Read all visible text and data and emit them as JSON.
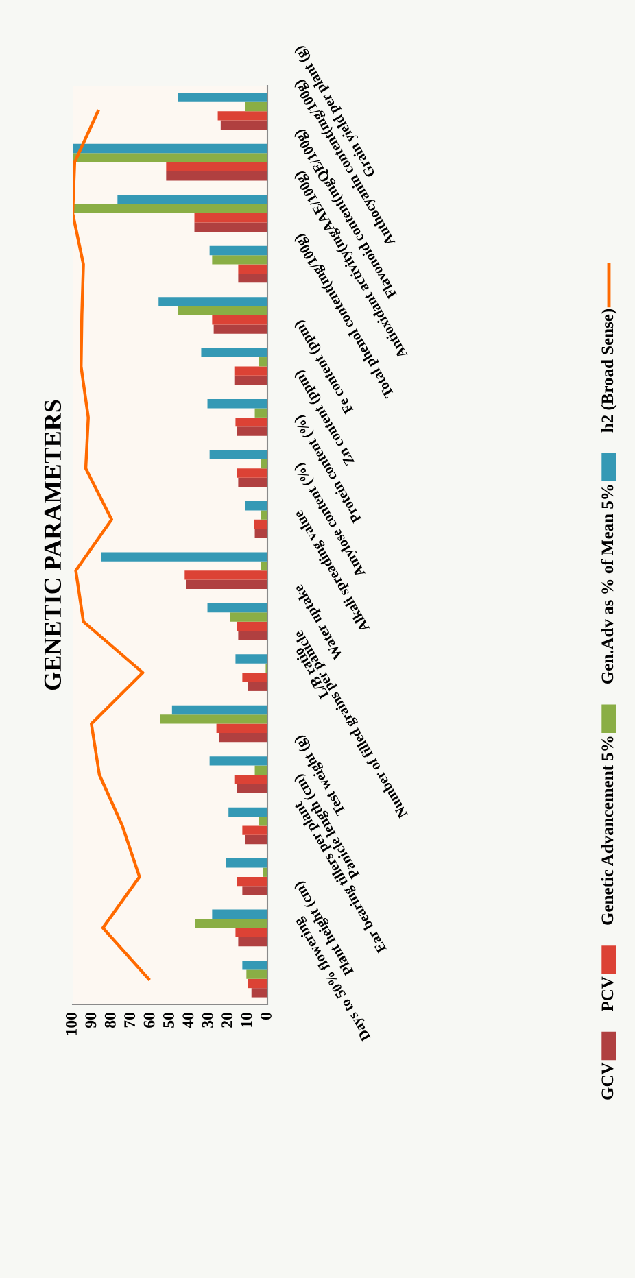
{
  "chart_data": {
    "type": "bar",
    "orientation": "horizontal",
    "title": "GENETIC PARAMETERS",
    "categories": [
      "Grain yield per plant (g)",
      "Anthocyanin content(mg/100g)",
      "Flavonoid content(mgQE/100g)",
      "Antioxidant activity(mgAAE/100g)",
      "Total phenol content(mg/100g)",
      "Fe content (ppm)",
      "Zn content (ppm)",
      "Protein content (%)",
      "Amylose content (%)",
      "Alkali spreading value",
      "Water uptake",
      "L/B ratio",
      "Number of filled grains per panicle",
      "Test weight (g)",
      "Panicle length (cm)",
      "Ear bearing tillers per plant",
      "Plant height (cm)",
      "Days to 50% flowering"
    ],
    "series": [
      {
        "name": "GCV",
        "color": "#b04040",
        "values": [
          24,
          52,
          37.5,
          15,
          27.6,
          17,
          15.6,
          15,
          6.5,
          41.9,
          15,
          10,
          25,
          15.6,
          11.4,
          12.9,
          15,
          8.2
        ]
      },
      {
        "name": "PCV",
        "color": "#dc4235",
        "values": [
          25.5,
          52,
          37.5,
          15,
          28.4,
          17,
          16.4,
          15.6,
          7,
          42.5,
          15.6,
          12.9,
          26.2,
          17,
          12.9,
          15.6,
          16.4,
          10
        ]
      },
      {
        "name": "Genetic Advancement 5%",
        "color": "#8aae45",
        "values": [
          11.4,
          100,
          100,
          28.4,
          46,
          4.5,
          6.5,
          3.2,
          3.2,
          3.2,
          19.1,
          0.9,
          55.2,
          6.5,
          4.5,
          2.3,
          37,
          10.8
        ]
      },
      {
        "name": "Gen.Adv as % of Mean 5%",
        "color": "#3599b5",
        "values": [
          46,
          100,
          77,
          29.7,
          55.9,
          34,
          30.8,
          29.7,
          11.4,
          85.3,
          30.8,
          16.4,
          49,
          29.7,
          20,
          21.4,
          28.4,
          12.9
        ]
      },
      {
        "name": "h2 (Broad Sense)",
        "type": "line",
        "color": "#ff6a00",
        "values": [
          87,
          99,
          100,
          94.5,
          95.3,
          95.7,
          92,
          93.3,
          80,
          98.4,
          94.5,
          64,
          90.4,
          86.3,
          74.5,
          65.7,
          84.5,
          61
        ]
      }
    ],
    "xlim": [
      100,
      0
    ],
    "xticks": [
      0,
      10,
      20,
      30,
      40,
      50,
      60,
      70,
      80,
      90,
      100
    ],
    "legend": "right"
  }
}
